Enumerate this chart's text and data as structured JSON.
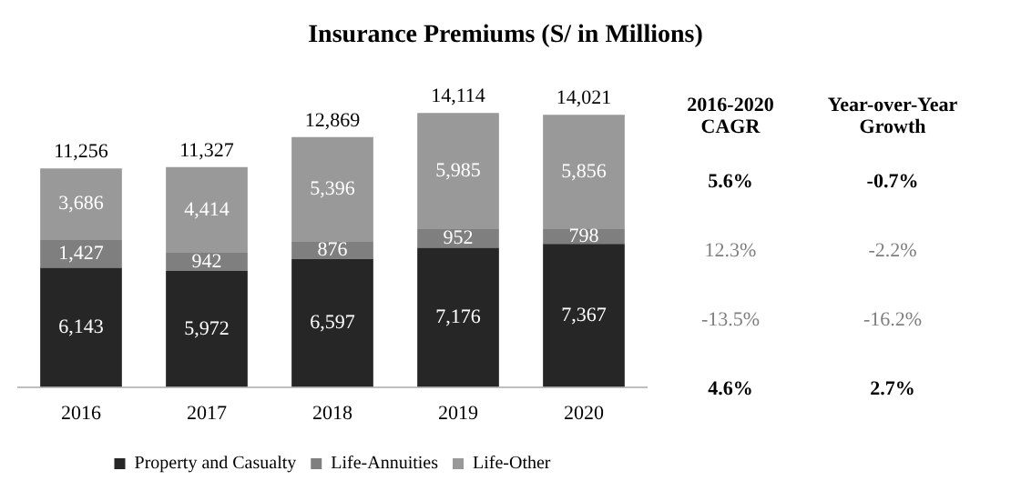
{
  "chart_data": {
    "type": "bar",
    "title": "Insurance Premiums (S/ in Millions)",
    "categories": [
      "2016",
      "2017",
      "2018",
      "2019",
      "2020"
    ],
    "stacked": true,
    "tick_labels": "x",
    "grid": false,
    "legend": "bottom",
    "series": [
      {
        "name": "Property and Casualty",
        "color": "#262626",
        "values": [
          6143,
          5972,
          6597,
          7176,
          7367
        ],
        "value_labels": [
          "6,143",
          "5,972",
          "6,597",
          "7,176",
          "7,367"
        ]
      },
      {
        "name": "Life-Annuities",
        "color": "#7f7f7f",
        "values": [
          1427,
          942,
          876,
          952,
          798
        ],
        "value_labels": [
          "1,427",
          "942",
          "876",
          "952",
          "798"
        ]
      },
      {
        "name": "Life-Other",
        "color": "#999999",
        "values": [
          3686,
          4414,
          5396,
          5985,
          5856
        ],
        "value_labels": [
          "3,686",
          "4,414",
          "5,396",
          "5,985",
          "5,856"
        ]
      }
    ],
    "totals": [
      "11,256",
      "11,327",
      "12,869",
      "14,114",
      "14,021"
    ],
    "annotations": [
      "2016-2020 CAGR",
      "Year-over-Year Growth",
      "5.6%",
      "-0.7%",
      "12.3%",
      "-2.2%",
      "-13.5%",
      "-16.2%",
      "4.6%",
      "2.7%"
    ]
  }
}
